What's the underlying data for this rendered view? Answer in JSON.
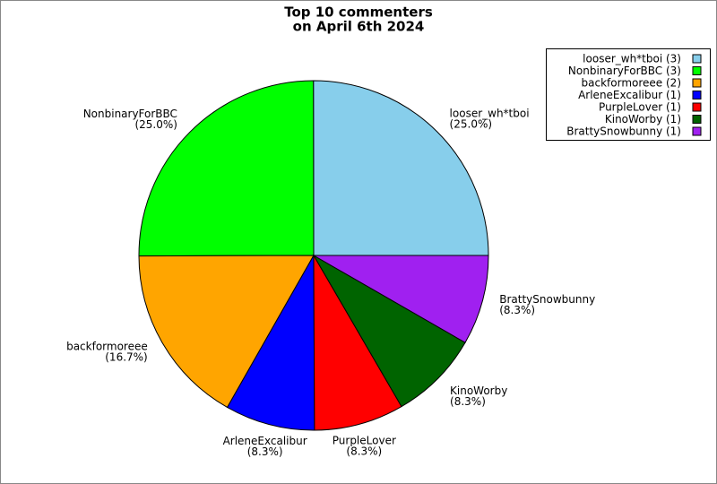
{
  "chart_data": {
    "type": "pie",
    "title": [
      "Top 10 commenters",
      "on April 6th 2024"
    ],
    "categories": [
      "looser_wh*tboi",
      "NonbinaryForBBC",
      "backformoreee",
      "ArleneExcalibur",
      "PurpleLover",
      "KinoWorby",
      "BrattySnowbunny"
    ],
    "values": [
      25.0,
      25.0,
      16.7,
      8.3,
      8.3,
      8.3,
      8.3
    ],
    "value_labels": [
      "(25.0%)",
      "(25.0%)",
      "(16.7%)",
      "(8.3%)",
      "(8.3%)",
      "(8.3%)",
      "(8.3%)"
    ],
    "legend_labels": [
      "looser_wh*tboi (3)",
      "NonbinaryForBBC (3)",
      "backformoreee (2)",
      "ArleneExcalibur (1)",
      "PurpleLover (1)",
      "KinoWorby (1)",
      "BrattySnowbunny (1)"
    ],
    "colors": [
      "#87ceeb",
      "#00ff00",
      "#ffa500",
      "#0000ff",
      "#ff0000",
      "#006400",
      "#a020f0"
    ],
    "legend_position": "upper right"
  }
}
